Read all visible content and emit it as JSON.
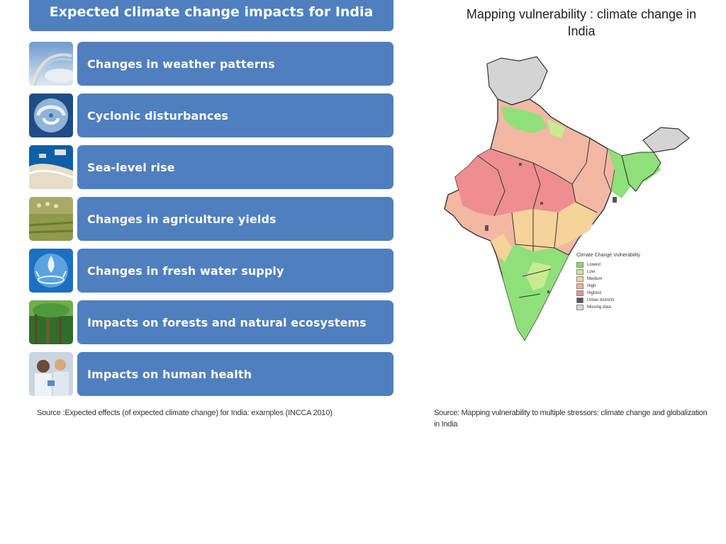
{
  "left_panel": {
    "title": "Expected climate change impacts for India",
    "impacts": [
      {
        "label": "Changes in weather patterns",
        "icon": "rainbow-sky-icon"
      },
      {
        "label": "Cyclonic disturbances",
        "icon": "cyclone-icon"
      },
      {
        "label": "Sea-level rise",
        "icon": "coastline-icon"
      },
      {
        "label": "Changes in agriculture yields",
        "icon": "crop-field-icon"
      },
      {
        "label": "Changes in fresh water supply",
        "icon": "water-splash-icon"
      },
      {
        "label": "Impacts on forests and natural ecosystems",
        "icon": "forest-icon"
      },
      {
        "label": "Impacts on human health",
        "icon": "health-worker-icon"
      }
    ],
    "source": "Source :Expected effects (of expected climate change) for India: examples (INCCA 2010)"
  },
  "right_panel": {
    "title": "Mapping vulnerability : climate change in India",
    "legend": {
      "title": "Climate Change Vulnerability",
      "items": [
        {
          "label": "Lowest",
          "color": "#7edc6a"
        },
        {
          "label": "Low",
          "color": "#c7ec8f"
        },
        {
          "label": "Medium",
          "color": "#f6d39a"
        },
        {
          "label": "High",
          "color": "#f4b09a"
        },
        {
          "label": "Highest",
          "color": "#ef8e90"
        },
        {
          "label": "Urban districts",
          "color": "#555555"
        },
        {
          "label": "Missing data",
          "color": "#d4d4d4"
        }
      ]
    },
    "source": "Source: Mapping vulnerability to multiple stressors: climate change and globalization in India"
  }
}
